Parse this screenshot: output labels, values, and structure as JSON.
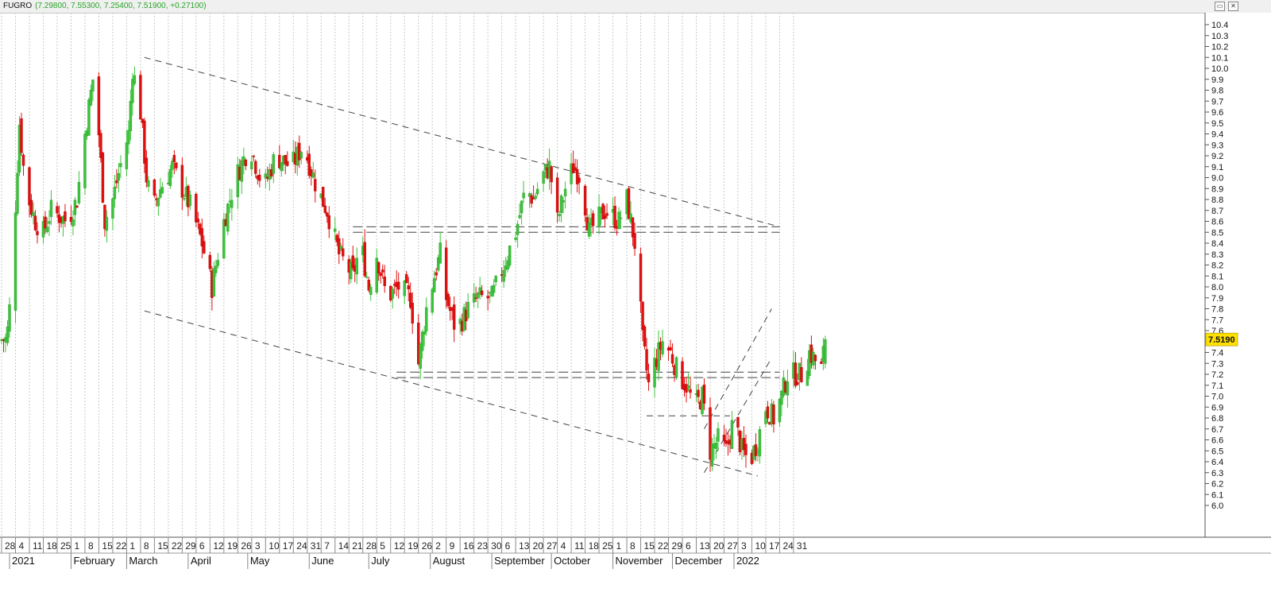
{
  "window": {
    "symbol": "FUGRO",
    "ohlc_readout": "(7.29800, 7.55300, 7.25400, 7.51900, +0.27100)",
    "restore_glyph": "▭",
    "close_glyph": "✕"
  },
  "colors": {
    "up": "#3cc33c",
    "down": "#e01010",
    "price_tag": "#ffe000",
    "grid": "#c8c8c8",
    "trendline": "#444444"
  },
  "chart_data": {
    "type": "candlestick",
    "title": "FUGRO",
    "ylim": [
      6.0,
      10.4
    ],
    "yticks": [
      "10.4",
      "10.3",
      "10.2",
      "10.1",
      "10.0",
      "9.9",
      "9.8",
      "9.7",
      "9.6",
      "9.5",
      "9.4",
      "9.3",
      "9.2",
      "9.1",
      "9.0",
      "8.9",
      "8.8",
      "8.7",
      "8.6",
      "8.5",
      "8.4",
      "8.3",
      "8.2",
      "8.1",
      "8.0",
      "7.9",
      "7.8",
      "7.7",
      "7.6",
      "7.5",
      "7.4",
      "7.3",
      "7.2",
      "7.1",
      "7.0",
      "6.9",
      "6.8",
      "6.7",
      "6.6",
      "6.5",
      "6.4",
      "6.3",
      "6.2",
      "6.1",
      "6.0"
    ],
    "last_price": "7.5190",
    "x_tick_labels": [
      "28",
      "4",
      "11",
      "18",
      "25",
      "1",
      "8",
      "15",
      "22",
      "1",
      "8",
      "15",
      "22",
      "29",
      "6",
      "12",
      "19",
      "26",
      "3",
      "10",
      "17",
      "24",
      "31",
      "7",
      "14",
      "21",
      "28",
      "5",
      "12",
      "19",
      "26",
      "2",
      "9",
      "16",
      "23",
      "30",
      "6",
      "13",
      "20",
      "27",
      "4",
      "11",
      "18",
      "25",
      "1",
      "8",
      "15",
      "22",
      "29",
      "6",
      "13",
      "20",
      "27",
      "3",
      "10",
      "17",
      "24",
      "31"
    ],
    "month_labels": [
      "2021",
      "February",
      "March",
      "April",
      "May",
      "June",
      "July",
      "August",
      "September",
      "October",
      "November",
      "December",
      "2022"
    ],
    "ohlc_last": {
      "open": 7.298,
      "high": 7.553,
      "low": 7.254,
      "close": 7.519,
      "change": 0.271
    },
    "trendlines": [
      {
        "name": "upper-falling",
        "from": [
          "2021-03-10",
          10.1
        ],
        "to": [
          "2022-01-24",
          8.55
        ]
      },
      {
        "name": "lower-falling",
        "from": [
          "2021-03-10",
          7.78
        ],
        "to": [
          "2022-01-13",
          6.27
        ]
      },
      {
        "name": "support-resistance-high",
        "from": [
          "2021-06-23",
          8.55
        ],
        "to": [
          "2022-01-24",
          8.55
        ]
      },
      {
        "name": "support-resistance-high-2",
        "from": [
          "2021-06-23",
          8.5
        ],
        "to": [
          "2022-01-24",
          8.5
        ]
      },
      {
        "name": "support-resistance-low",
        "from": [
          "2021-07-15",
          7.22
        ],
        "to": [
          "2022-01-24",
          7.22
        ]
      },
      {
        "name": "support-resistance-low-2",
        "from": [
          "2021-07-15",
          7.17
        ],
        "to": [
          "2022-01-24",
          7.17
        ]
      },
      {
        "name": "base-line",
        "from": [
          "2021-11-18",
          6.82
        ],
        "to": [
          "2021-12-30",
          6.82
        ]
      },
      {
        "name": "channel-upper",
        "from": [
          "2021-12-17",
          6.7
        ],
        "to": [
          "2022-01-20",
          7.8
        ]
      },
      {
        "name": "channel-lower",
        "from": [
          "2021-12-17",
          6.3
        ],
        "to": [
          "2022-01-20",
          7.35
        ]
      }
    ]
  }
}
